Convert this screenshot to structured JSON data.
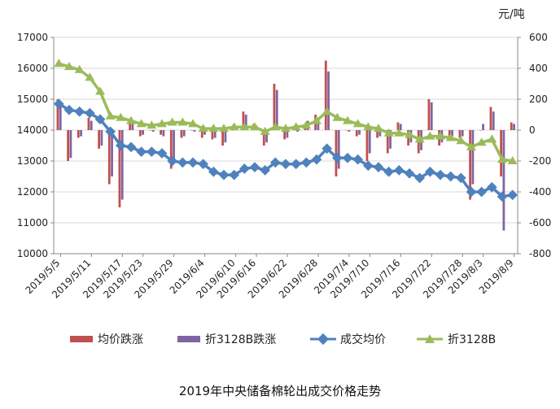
{
  "chart_data": {
    "type": "bar+line",
    "title": "2019年中央储备棉轮出成交价格走势",
    "unit_right": "元/吨",
    "y_left": {
      "lim": [
        10000,
        17000
      ],
      "ticks": [
        10000,
        11000,
        12000,
        13000,
        14000,
        15000,
        16000,
        17000
      ]
    },
    "y_right": {
      "lim": [
        -800,
        600
      ],
      "ticks": [
        -800,
        -600,
        -400,
        -200,
        0,
        200,
        400,
        600
      ]
    },
    "x_tick_labels": [
      "2019/5/5",
      "2019/5/11",
      "2019/5/17",
      "2019/5/23",
      "2019/5/29",
      "2019/6/4",
      "2019/6/10",
      "2019/6/16",
      "2019/6/22",
      "2019/6/28",
      "2019/7/4",
      "2019/7/10",
      "2019/7/16",
      "2019/7/22",
      "2019/7/28",
      "2019/8/3",
      "2019/8/9"
    ],
    "legend": [
      "均价跌涨",
      "折3128B跌涨",
      "成交均价",
      "折3128B"
    ],
    "series_colors": {
      "均价跌涨": "#C0504D",
      "折3128B跌涨": "#8064A2",
      "成交均价": "#4F81BD",
      "折3128B": "#9BBB59"
    },
    "series": [
      {
        "name": "成交均价",
        "axis": "left",
        "kind": "line",
        "values": [
          14850,
          14650,
          14600,
          14550,
          14350,
          13950,
          13500,
          13450,
          13300,
          13300,
          13250,
          13000,
          12950,
          12950,
          12900,
          12650,
          12550,
          12550,
          12750,
          12800,
          12700,
          12950,
          12900,
          12900,
          12950,
          13050,
          13400,
          13100,
          13100,
          13050,
          12850,
          12800,
          12650,
          12700,
          12600,
          12450,
          12650,
          12550,
          12500,
          12450,
          12000,
          12000,
          12150,
          11850,
          11900
        ]
      },
      {
        "name": "折3128B",
        "axis": "right",
        "kind": "line",
        "values": [
          430,
          410,
          390,
          340,
          250,
          90,
          80,
          60,
          40,
          30,
          40,
          50,
          50,
          40,
          10,
          10,
          10,
          20,
          20,
          20,
          -10,
          20,
          10,
          20,
          30,
          60,
          120,
          80,
          60,
          40,
          20,
          10,
          -20,
          -20,
          -30,
          -60,
          -40,
          -40,
          -50,
          -70,
          -110,
          -80,
          -60,
          -190,
          -200
        ]
      },
      {
        "name": "均价跌涨",
        "axis": "right",
        "kind": "bar",
        "values": [
          200,
          -200,
          -50,
          80,
          -120,
          -350,
          -500,
          50,
          -40,
          0,
          -30,
          -250,
          -50,
          0,
          -50,
          -60,
          -100,
          0,
          120,
          40,
          -100,
          300,
          -60,
          0,
          40,
          100,
          450,
          -300,
          0,
          -40,
          -200,
          -50,
          -150,
          50,
          -100,
          -150,
          200,
          -100,
          -50,
          -50,
          -450,
          0,
          150,
          -300,
          50
        ]
      },
      {
        "name": "折3128B跌涨",
        "axis": "right",
        "kind": "bar",
        "values": [
          150,
          -180,
          -40,
          60,
          -100,
          -300,
          -450,
          40,
          -30,
          -10,
          -40,
          -200,
          -40,
          -10,
          -30,
          -50,
          -80,
          10,
          100,
          30,
          -80,
          260,
          -50,
          -10,
          60,
          80,
          380,
          -250,
          -10,
          -30,
          -150,
          -40,
          -120,
          40,
          -80,
          -130,
          180,
          -80,
          -40,
          -40,
          -350,
          40,
          120,
          -650,
          40
        ]
      }
    ]
  }
}
